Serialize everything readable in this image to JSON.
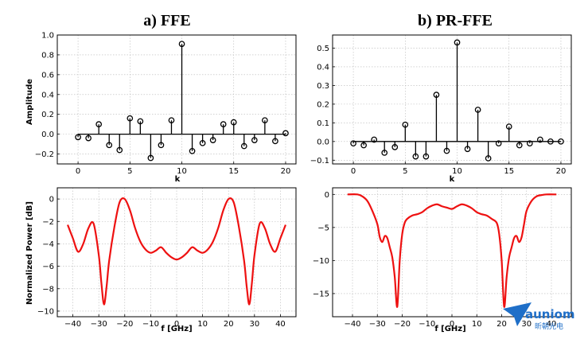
{
  "chart_data": [
    {
      "id": "ffe-taps",
      "type": "stem",
      "title": "a) FFE",
      "xlabel": "k",
      "ylabel": "Amplitude",
      "xlim": [
        -2,
        21
      ],
      "ylim": [
        -0.3,
        1.0
      ],
      "xticks": [
        0,
        5,
        10,
        15,
        20
      ],
      "yticks": [
        -0.2,
        0.0,
        0.2,
        0.4,
        0.6,
        0.8,
        1.0
      ],
      "ytick_labels": [
        "−0.2",
        "0.0",
        "0.2",
        "0.4",
        "0.6",
        "0.8",
        "1.0"
      ],
      "grid": true,
      "x": [
        0,
        1,
        2,
        3,
        4,
        5,
        6,
        7,
        8,
        9,
        10,
        11,
        12,
        13,
        14,
        15,
        16,
        17,
        18,
        19,
        20
      ],
      "values": [
        -0.03,
        -0.04,
        0.1,
        -0.11,
        -0.16,
        0.16,
        0.13,
        -0.24,
        -0.11,
        0.14,
        0.91,
        -0.17,
        -0.09,
        -0.06,
        0.1,
        0.12,
        -0.12,
        -0.06,
        0.14,
        -0.07,
        0.01
      ]
    },
    {
      "id": "prffe-taps",
      "type": "stem",
      "title": "b) PR-FFE",
      "xlabel": "k",
      "ylabel": "",
      "xlim": [
        -2,
        21
      ],
      "ylim": [
        -0.12,
        0.57
      ],
      "xticks": [
        0,
        5,
        10,
        15,
        20
      ],
      "yticks": [
        -0.1,
        0.0,
        0.1,
        0.2,
        0.3,
        0.4,
        0.5
      ],
      "ytick_labels": [
        "−0.1",
        "0.0",
        "0.1",
        "0.2",
        "0.3",
        "0.4",
        "0.5"
      ],
      "grid": true,
      "x": [
        0,
        1,
        2,
        3,
        4,
        5,
        6,
        7,
        8,
        9,
        10,
        11,
        12,
        13,
        14,
        15,
        16,
        17,
        18,
        19,
        20
      ],
      "values": [
        -0.01,
        -0.02,
        0.01,
        -0.06,
        -0.03,
        0.09,
        -0.08,
        -0.08,
        0.25,
        -0.05,
        0.53,
        -0.04,
        0.17,
        -0.09,
        -0.01,
        0.08,
        -0.02,
        -0.01,
        0.01,
        0.0,
        0.0
      ]
    },
    {
      "id": "ffe-response",
      "type": "line",
      "title": "",
      "xlabel": "f [GHz]",
      "ylabel": "Normalized Power [dB]",
      "xlim": [
        -46,
        46
      ],
      "ylim": [
        -10.5,
        1.0
      ],
      "xticks": [
        -40,
        -30,
        -20,
        -10,
        0,
        10,
        20,
        30,
        40
      ],
      "xtick_labels": [
        "−40",
        "−30",
        "−20",
        "−10",
        "0",
        "10",
        "20",
        "30",
        "40"
      ],
      "yticks": [
        -10,
        -8,
        -6,
        -4,
        -2,
        0
      ],
      "ytick_labels": [
        "−10",
        "−8",
        "−6",
        "−4",
        "−2",
        "0"
      ],
      "grid": true,
      "color": "#ee1111",
      "x": [
        -42,
        -40,
        -38,
        -36,
        -34,
        -32,
        -30,
        -29,
        -28,
        -27,
        -26,
        -24,
        -22,
        -20,
        -18,
        -16,
        -14,
        -12,
        -10,
        -8,
        -6,
        -4,
        -2,
        0
      ],
      "values": [
        -2.3,
        -3.5,
        -4.7,
        -4.0,
        -2.6,
        -2.2,
        -5.0,
        -7.5,
        -9.4,
        -7.8,
        -5.5,
        -2.5,
        -0.3,
        0.0,
        -1.0,
        -2.6,
        -3.8,
        -4.5,
        -4.8,
        -4.6,
        -4.3,
        -4.8,
        -5.2,
        -5.4
      ],
      "symmetric": true
    },
    {
      "id": "prffe-response",
      "type": "line",
      "title": "",
      "xlabel": "f [GHz]",
      "ylabel": "",
      "xlim": [
        -48,
        48
      ],
      "ylim": [
        -18.5,
        1.0
      ],
      "xticks": [
        -40,
        -30,
        -20,
        -10,
        0,
        10,
        20,
        30,
        40
      ],
      "xtick_labels": [
        "−40",
        "−30",
        "−20",
        "−10",
        "0",
        "10",
        "20",
        "30",
        "40"
      ],
      "yticks": [
        -15,
        -10,
        -5,
        0
      ],
      "ytick_labels": [
        "−15",
        "−10",
        "−5",
        "0"
      ],
      "grid": true,
      "color": "#ee1111",
      "x": [
        -42,
        -38,
        -36,
        -34,
        -32,
        -30,
        -29,
        -28,
        -27,
        -26,
        -25,
        -24,
        -23,
        -22,
        -21,
        -20,
        -19,
        -18,
        -16,
        -14,
        -12,
        -10,
        -8,
        -6,
        -4,
        -2,
        0,
        2,
        4,
        6,
        8,
        10,
        12,
        14,
        16,
        18,
        19,
        20,
        21,
        22,
        23,
        24,
        25,
        26,
        27,
        28,
        29,
        30,
        32,
        34,
        36,
        38,
        42
      ],
      "values": [
        0.0,
        0.0,
        -0.3,
        -1.0,
        -2.5,
        -4.5,
        -6.5,
        -7.2,
        -6.3,
        -6.6,
        -8.0,
        -9.5,
        -12.5,
        -17.0,
        -10.0,
        -6.0,
        -4.3,
        -3.7,
        -3.2,
        -3.0,
        -2.7,
        -2.1,
        -1.7,
        -1.5,
        -1.8,
        -2.0,
        -2.2,
        -1.8,
        -1.5,
        -1.7,
        -2.1,
        -2.7,
        -3.0,
        -3.2,
        -3.7,
        -4.3,
        -6.0,
        -10.0,
        -17.0,
        -12.5,
        -9.5,
        -8.0,
        -6.6,
        -6.3,
        -7.2,
        -6.5,
        -4.5,
        -2.5,
        -1.0,
        -0.3,
        -0.1,
        0.0,
        0.0
      ]
    }
  ],
  "logo": {
    "name": "auniom",
    "subtitle": "昕朝光电"
  }
}
